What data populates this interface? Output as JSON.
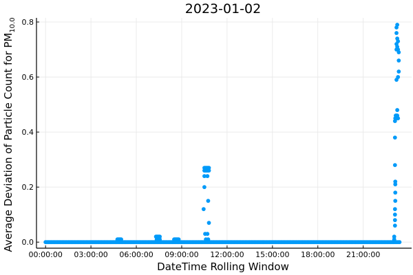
{
  "chart_data": {
    "type": "scatter",
    "title": "2023-01-02",
    "xlabel": "DateTime Rolling Window",
    "ylabel": "Average Deviation of Particle Count for PM",
    "ylabel_sub": "10.0",
    "x_unit": "hours since 00:00:00",
    "xlim": [
      -0.6,
      24.2
    ],
    "ylim": [
      -0.022,
      0.815
    ],
    "x_ticks": [
      {
        "value": 0,
        "label": "00:00:00"
      },
      {
        "value": 3,
        "label": "03:00:00"
      },
      {
        "value": 6,
        "label": "06:00:00"
      },
      {
        "value": 9,
        "label": "09:00:00"
      },
      {
        "value": 12,
        "label": "12:00:00"
      },
      {
        "value": 15,
        "label": "15:00:00"
      },
      {
        "value": 18,
        "label": "18:00:00"
      },
      {
        "value": 21,
        "label": "21:00:00"
      }
    ],
    "y_ticks": [
      {
        "value": 0.0,
        "label": "0.0"
      },
      {
        "value": 0.2,
        "label": "0.2"
      },
      {
        "value": 0.4,
        "label": "0.4"
      },
      {
        "value": 0.6,
        "label": "0.6"
      },
      {
        "value": 0.8,
        "label": "0.8"
      }
    ],
    "grid": true,
    "legend": "none",
    "marker_color": "#009AF9",
    "baseline": {
      "y": 0.0,
      "x_start": 0.0,
      "x_end": 23.4,
      "step": 0.1
    },
    "points": [
      {
        "x": 4.75,
        "y": 0.01
      },
      {
        "x": 4.8,
        "y": 0.01
      },
      {
        "x": 4.85,
        "y": 0.01
      },
      {
        "x": 4.9,
        "y": 0.01
      },
      {
        "x": 4.95,
        "y": 0.01
      },
      {
        "x": 5.0,
        "y": 0.01
      },
      {
        "x": 7.3,
        "y": 0.02
      },
      {
        "x": 7.35,
        "y": 0.02
      },
      {
        "x": 7.4,
        "y": 0.02
      },
      {
        "x": 7.45,
        "y": 0.02
      },
      {
        "x": 7.5,
        "y": 0.02
      },
      {
        "x": 7.55,
        "y": 0.02
      },
      {
        "x": 7.35,
        "y": 0.01
      },
      {
        "x": 7.45,
        "y": 0.01
      },
      {
        "x": 7.55,
        "y": 0.01
      },
      {
        "x": 8.5,
        "y": 0.01
      },
      {
        "x": 8.55,
        "y": 0.01
      },
      {
        "x": 8.6,
        "y": 0.01
      },
      {
        "x": 8.65,
        "y": 0.01
      },
      {
        "x": 8.7,
        "y": 0.01
      },
      {
        "x": 8.75,
        "y": 0.01
      },
      {
        "x": 8.8,
        "y": 0.01
      },
      {
        "x": 10.45,
        "y": 0.12
      },
      {
        "x": 10.5,
        "y": 0.2
      },
      {
        "x": 10.5,
        "y": 0.24
      },
      {
        "x": 10.5,
        "y": 0.26
      },
      {
        "x": 10.55,
        "y": 0.26
      },
      {
        "x": 10.6,
        "y": 0.26
      },
      {
        "x": 10.65,
        "y": 0.26
      },
      {
        "x": 10.7,
        "y": 0.26
      },
      {
        "x": 10.75,
        "y": 0.26
      },
      {
        "x": 10.8,
        "y": 0.26
      },
      {
        "x": 10.5,
        "y": 0.27
      },
      {
        "x": 10.55,
        "y": 0.27
      },
      {
        "x": 10.6,
        "y": 0.27
      },
      {
        "x": 10.65,
        "y": 0.27
      },
      {
        "x": 10.7,
        "y": 0.27
      },
      {
        "x": 10.75,
        "y": 0.27
      },
      {
        "x": 10.8,
        "y": 0.27
      },
      {
        "x": 10.7,
        "y": 0.24
      },
      {
        "x": 10.75,
        "y": 0.15
      },
      {
        "x": 10.8,
        "y": 0.07
      },
      {
        "x": 10.55,
        "y": 0.03
      },
      {
        "x": 10.7,
        "y": 0.03
      },
      {
        "x": 10.6,
        "y": 0.01
      },
      {
        "x": 10.75,
        "y": 0.01
      },
      {
        "x": 23.05,
        "y": 0.01
      },
      {
        "x": 23.05,
        "y": 0.02
      },
      {
        "x": 23.1,
        "y": 0.06
      },
      {
        "x": 23.1,
        "y": 0.08
      },
      {
        "x": 23.1,
        "y": 0.1
      },
      {
        "x": 23.1,
        "y": 0.12
      },
      {
        "x": 23.12,
        "y": 0.15
      },
      {
        "x": 23.12,
        "y": 0.18
      },
      {
        "x": 23.12,
        "y": 0.21
      },
      {
        "x": 23.12,
        "y": 0.22
      },
      {
        "x": 23.1,
        "y": 0.28
      },
      {
        "x": 23.1,
        "y": 0.38
      },
      {
        "x": 23.1,
        "y": 0.44
      },
      {
        "x": 23.12,
        "y": 0.45
      },
      {
        "x": 23.15,
        "y": 0.46
      },
      {
        "x": 23.2,
        "y": 0.45
      },
      {
        "x": 23.25,
        "y": 0.46
      },
      {
        "x": 23.3,
        "y": 0.45
      },
      {
        "x": 23.25,
        "y": 0.48
      },
      {
        "x": 23.2,
        "y": 0.46
      },
      {
        "x": 23.2,
        "y": 0.59
      },
      {
        "x": 23.3,
        "y": 0.6
      },
      {
        "x": 23.35,
        "y": 0.62
      },
      {
        "x": 23.35,
        "y": 0.66
      },
      {
        "x": 23.2,
        "y": 0.7
      },
      {
        "x": 23.25,
        "y": 0.71
      },
      {
        "x": 23.3,
        "y": 0.7
      },
      {
        "x": 23.35,
        "y": 0.69
      },
      {
        "x": 23.2,
        "y": 0.72
      },
      {
        "x": 23.3,
        "y": 0.73
      },
      {
        "x": 23.25,
        "y": 0.74
      },
      {
        "x": 23.2,
        "y": 0.76
      },
      {
        "x": 23.2,
        "y": 0.78
      },
      {
        "x": 23.25,
        "y": 0.79
      }
    ]
  }
}
